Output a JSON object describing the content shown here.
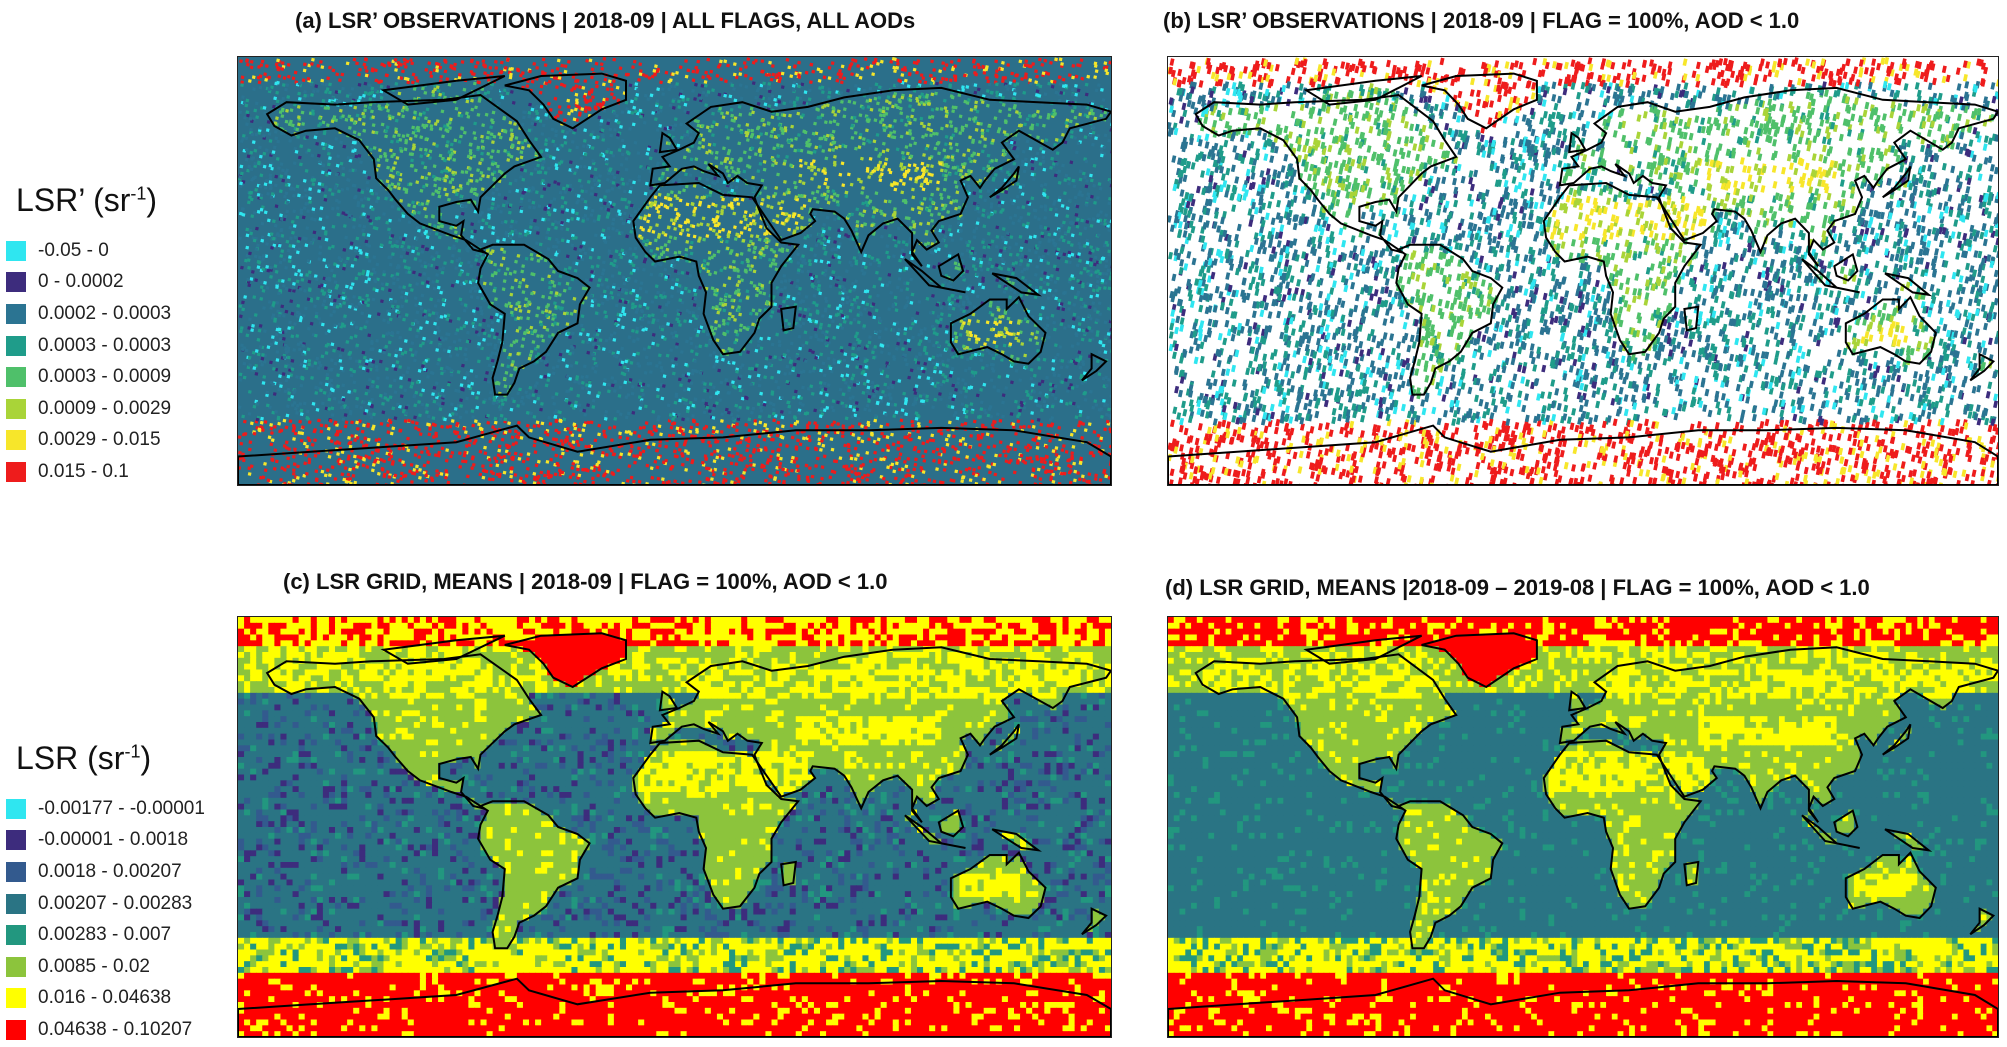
{
  "panels": [
    {
      "id": "a",
      "title": "(a) LSR’ OBSERVATIONS | 2018-09 | ALL FLAGS, ALL AODs",
      "style": "obs_all"
    },
    {
      "id": "b",
      "title": "(b) LSR’ OBSERVATIONS | 2018-09 | FLAG = 100%, AOD < 1.0",
      "style": "obs_filtered"
    },
    {
      "id": "c",
      "title": "(c) LSR GRID, MEANS | 2018-09 | FLAG = 100%, AOD < 1.0",
      "style": "grid_month"
    },
    {
      "id": "d",
      "title": "(d) LSR GRID, MEANS |2018-09 – 2019-08 | FLAG = 100%, AOD < 1.0",
      "style": "grid_year"
    }
  ],
  "legend_top": {
    "title_main": "LSR’ (sr",
    "title_sup": "-1",
    "title_end": ")",
    "items": [
      {
        "label": "-0.05 - 0",
        "color": "#2fe6f0"
      },
      {
        "label": "0 - 0.0002",
        "color": "#3d2c7d"
      },
      {
        "label": "0.0002 - 0.0003",
        "color": "#2b7492"
      },
      {
        "label": "0.0003 - 0.0003",
        "color": "#1f9c8a"
      },
      {
        "label": "0.0003 - 0.0009",
        "color": "#4fc06a"
      },
      {
        "label": "0.0009 - 0.0029",
        "color": "#a9d438"
      },
      {
        "label": "0.0029 - 0.015",
        "color": "#f7e62a"
      },
      {
        "label": "0.015 - 0.1",
        "color": "#ee1c1c"
      }
    ]
  },
  "legend_bottom": {
    "title_main": "LSR (sr",
    "title_sup": "-1",
    "title_end": ")",
    "items": [
      {
        "label": "-0.00177 - -0.00001",
        "color": "#2fe6f0"
      },
      {
        "label": "-0.00001 - 0.0018",
        "color": "#3d2c7d"
      },
      {
        "label": "0.0018 - 0.00207",
        "color": "#335a8e"
      },
      {
        "label": "0.00207 - 0.00283",
        "color": "#2a7484"
      },
      {
        "label": "0.00283 - 0.007",
        "color": "#22977f"
      },
      {
        "label": "0.0085 - 0.02",
        "color": "#8cc43c"
      },
      {
        "label": "0.016 - 0.04638",
        "color": "#ffff00"
      },
      {
        "label": "0.04638 - 0.10207",
        "color": "#ff0000"
      }
    ]
  }
}
